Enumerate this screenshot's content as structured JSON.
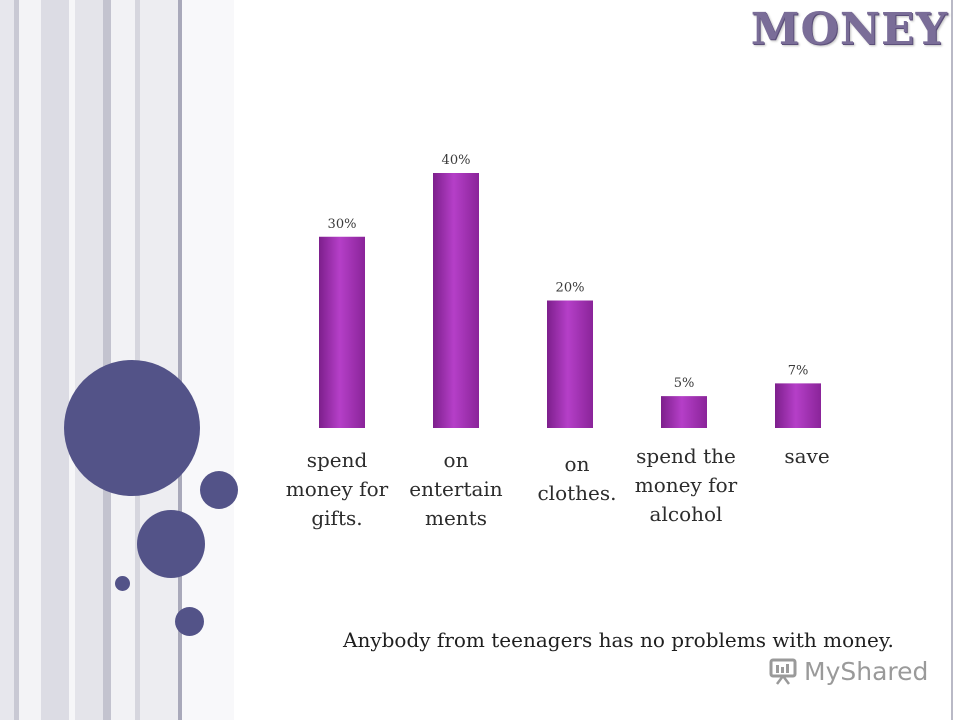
{
  "slide": {
    "title": "MONEY",
    "note": "Anybody from teenagers has no problems with money."
  },
  "watermark": {
    "text": "MyShared"
  },
  "colors": {
    "bar": "#a030b4",
    "title": "#7a6d98",
    "circle": "#535388"
  },
  "chart_data": {
    "type": "bar",
    "categories": [
      "spend money for gifts.",
      "on entertain ments",
      "on clothes.",
      "spend the money for alcohol",
      "save"
    ],
    "category_lines": [
      "spend\nmoney for\ngifts.",
      "on\nentertain\nments",
      "on\nclothes.",
      "spend the\nmoney for\nalcohol",
      "save"
    ],
    "values": [
      30,
      40,
      20,
      5,
      7
    ],
    "data_labels": [
      "30%",
      "40%",
      "20%",
      "5%",
      "7%"
    ],
    "unit": "%",
    "title": "",
    "xlabel": "",
    "ylabel": "",
    "ylim": [
      0,
      40
    ],
    "grid": false,
    "legend": "none"
  }
}
